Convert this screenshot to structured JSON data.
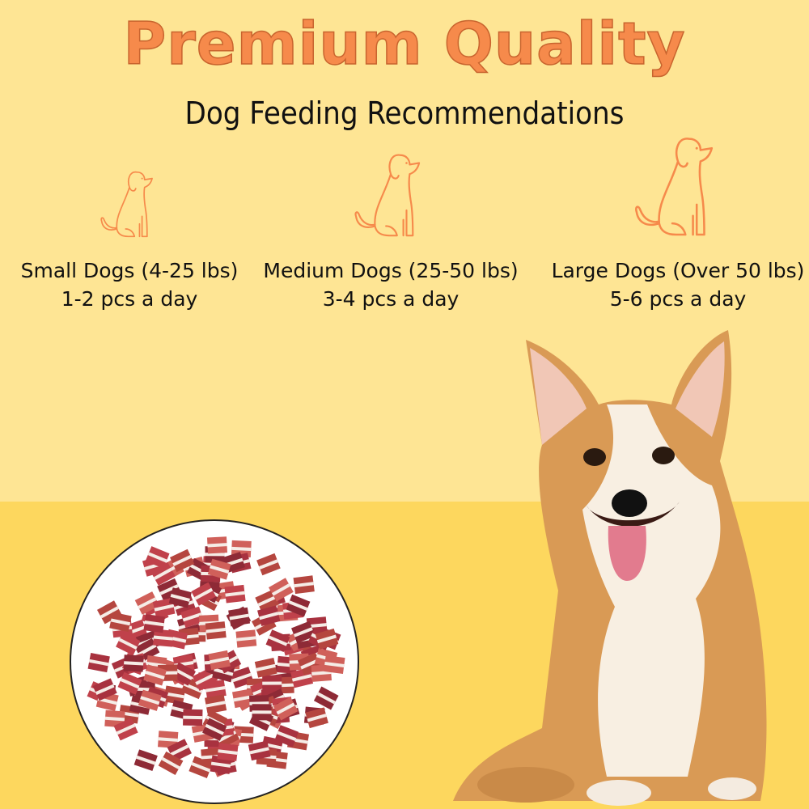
{
  "header": {
    "title": "Premium Quality",
    "subtitle": "Dog Feeding Recommendations"
  },
  "colors": {
    "accent": "#f68a4b",
    "background_top": "#fee594",
    "background_bottom": "#fdd75e"
  },
  "recommendations": [
    {
      "size": "Small Dogs (4-25 lbs)",
      "amount": "1-2 pcs a day",
      "icon": "sitting-dog-icon"
    },
    {
      "size": "Medium Dogs (25-50 lbs)",
      "amount": "3-4 pcs a day",
      "icon": "sitting-dog-icon"
    },
    {
      "size": "Large Dogs (Over 50 lbs)",
      "amount": "5-6 pcs a day",
      "icon": "sitting-dog-icon"
    }
  ]
}
